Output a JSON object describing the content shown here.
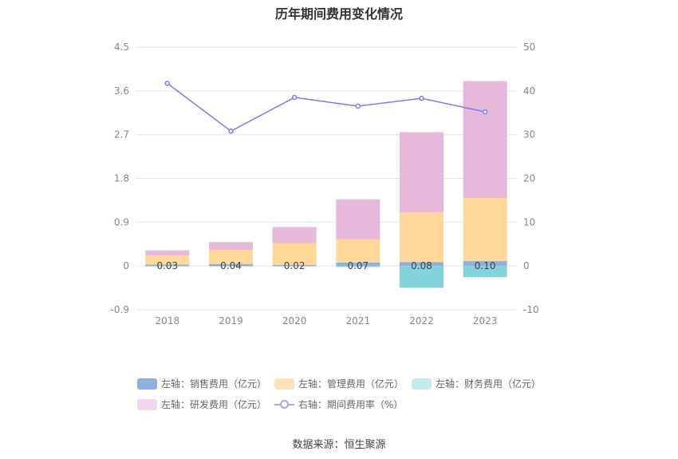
{
  "title": "历年期间费用变化情况",
  "source": "数据来源：恒生聚源",
  "colors": {
    "sales": "#8eb0dc",
    "admin": "#ffd899",
    "finance": "#85d3da",
    "rnd": "#e6b8d9",
    "line": "#7b7cf0",
    "grid": "#e4e4ec",
    "axis_text": "#888888"
  },
  "legend": [
    {
      "key": "sales",
      "label": "左轴：销售费用（亿元）",
      "color": "#8eb0dc",
      "type": "bar"
    },
    {
      "key": "admin",
      "label": "左轴：管理费用（亿元）",
      "color": "#ffe3b8",
      "type": "bar"
    },
    {
      "key": "finance",
      "label": "左轴：财务费用（亿元）",
      "color": "#c3ebee",
      "type": "bar"
    },
    {
      "key": "rnd",
      "label": "左轴：研发费用（亿元）",
      "color": "#f3d7ec",
      "type": "bar"
    },
    {
      "key": "rate",
      "label": "右轴：期间费用率（%）",
      "color": "#a5a6f5",
      "type": "line"
    }
  ],
  "chart_data": {
    "type": "bar",
    "categories": [
      "2018",
      "2019",
      "2020",
      "2021",
      "2022",
      "2023"
    ],
    "series": [
      {
        "name": "左轴：销售费用（亿元）",
        "key": "sales",
        "axis": "left",
        "values": [
          0.03,
          0.04,
          0.02,
          0.07,
          0.08,
          0.1
        ],
        "labels": [
          "0.03",
          "0.04",
          "0.02",
          "0.07",
          "0.08",
          "0.10"
        ]
      },
      {
        "name": "左轴：管理费用（亿元）",
        "key": "admin",
        "axis": "left",
        "values": [
          0.18,
          0.29,
          0.45,
          0.48,
          1.02,
          1.3
        ]
      },
      {
        "name": "左轴：财务费用（亿元）",
        "key": "finance",
        "axis": "left",
        "values": [
          -0.01,
          -0.01,
          -0.01,
          -0.02,
          -0.45,
          -0.23
        ]
      },
      {
        "name": "左轴：研发费用（亿元）",
        "key": "rnd",
        "axis": "left",
        "values": [
          0.11,
          0.16,
          0.33,
          0.82,
          1.65,
          2.4
        ]
      },
      {
        "name": "右轴：期间费用率（%）",
        "key": "rate",
        "axis": "right",
        "type": "line",
        "values": [
          41.7,
          30.8,
          38.5,
          36.5,
          38.3,
          35.2
        ]
      }
    ],
    "left_axis": {
      "min": -0.9,
      "max": 4.5,
      "ticks": [
        "4.5",
        "3.6",
        "2.7",
        "1.8",
        "0.9",
        "0",
        "-0.9"
      ]
    },
    "right_axis": {
      "min": -10,
      "max": 50,
      "ticks": [
        "50",
        "40",
        "30",
        "20",
        "10",
        "0",
        "-10"
      ]
    },
    "grid": true,
    "legend_position": "bottom"
  }
}
